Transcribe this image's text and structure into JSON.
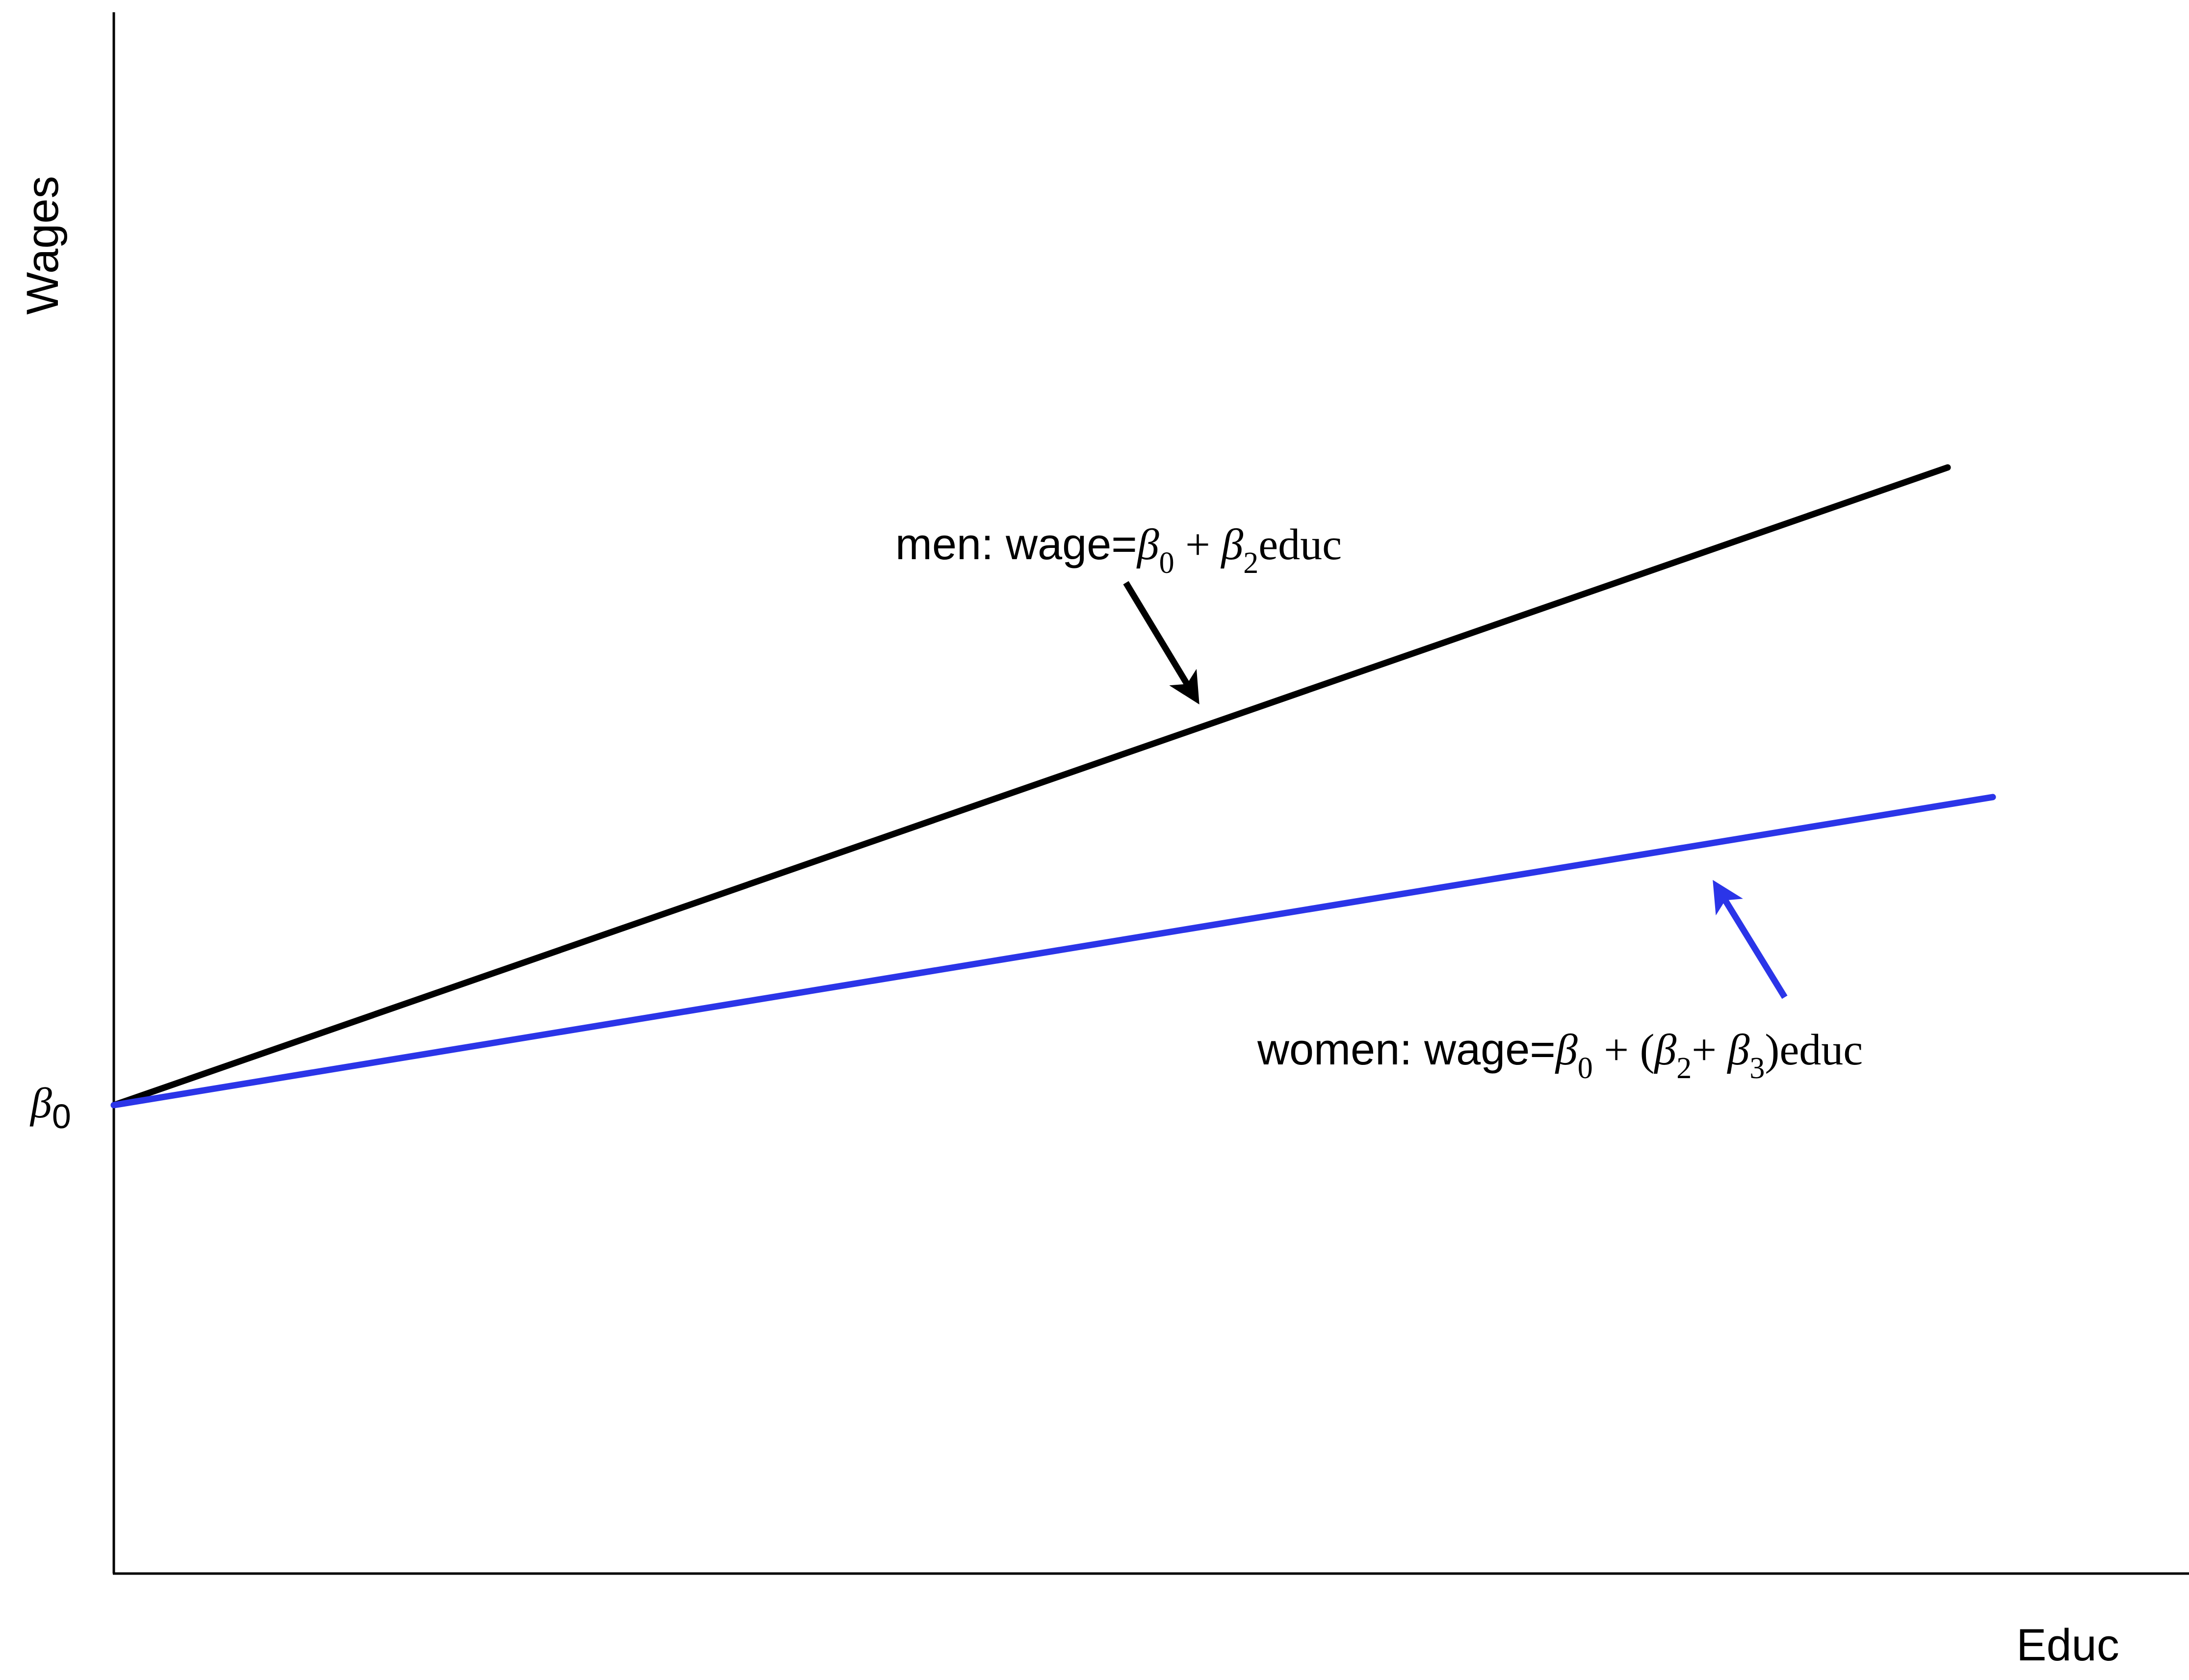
{
  "axes": {
    "x_label": "Educ",
    "y_label": "Wages",
    "intercept_symbol": "β",
    "intercept_subscript": "0"
  },
  "lines": {
    "men": {
      "color": "#000000"
    },
    "women": {
      "color": "#2b35e8"
    }
  },
  "annotations": {
    "men": {
      "prefix": "men: wage=",
      "beta": "β",
      "sub0": "0",
      "plus": " + ",
      "sub2": "2",
      "suffix": "educ"
    },
    "women": {
      "prefix": "women: wage=",
      "beta": "β",
      "sub0": "0",
      "plus_paren": " + (",
      "sub2": "2",
      "plus": "+ ",
      "sub3": "3",
      "suffix": ")educ"
    }
  }
}
